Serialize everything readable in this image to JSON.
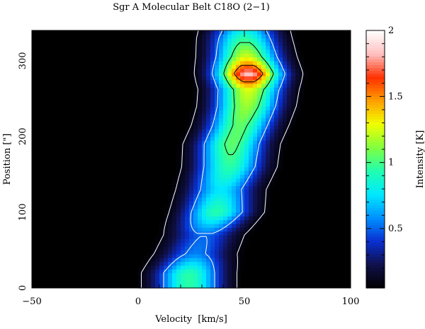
{
  "chart_data": {
    "type": "heatmap",
    "title": "Sgr A Molecular Belt C18O (2−1)",
    "xlabel": "Velocity  [km/s]",
    "ylabel": "Position [\"]",
    "xlim": [
      -50,
      100
    ],
    "ylim": [
      0,
      340
    ],
    "x_ticks": [
      -50,
      0,
      50,
      100
    ],
    "y_ticks": [
      0,
      100,
      200,
      300
    ],
    "colorbar": {
      "label": "Intensity [K]",
      "range": [
        0.05,
        2
      ],
      "ticks": [
        0.5,
        1,
        1.5,
        2
      ],
      "colormap": [
        "#000000",
        "#10104a",
        "#0a2fd0",
        "#0090ff",
        "#00e8ff",
        "#20ffb0",
        "#80ff40",
        "#f0ff00",
        "#ffa000",
        "#ff3000",
        "#ffc0c0",
        "#ffffff"
      ]
    },
    "ridge": [
      {
        "position": 0,
        "velocity": 24,
        "peak": 0.95
      },
      {
        "position": 20,
        "velocity": 24,
        "peak": 0.95
      },
      {
        "position": 45,
        "velocity": 27,
        "peak": 0.55
      },
      {
        "position": 70,
        "velocity": 31,
        "peak": 0.5
      },
      {
        "position": 100,
        "velocity": 37,
        "peak": 0.95
      },
      {
        "position": 130,
        "velocity": 39,
        "peak": 0.75
      },
      {
        "position": 160,
        "velocity": 43,
        "peak": 0.95
      },
      {
        "position": 190,
        "velocity": 44,
        "peak": 1.05
      },
      {
        "position": 215,
        "velocity": 48,
        "peak": 1.05
      },
      {
        "position": 240,
        "velocity": 51,
        "peak": 1.15
      },
      {
        "position": 262,
        "velocity": 52,
        "peak": 1.25
      },
      {
        "position": 283,
        "velocity": 52,
        "peak": 1.85
      },
      {
        "position": 305,
        "velocity": 51,
        "peak": 1.25
      },
      {
        "position": 330,
        "velocity": 50,
        "peak": 0.95
      },
      {
        "position": 340,
        "velocity": 50,
        "peak": 0.8
      }
    ],
    "contour_levels": [
      0.1,
      0.5,
      1.0,
      1.5
    ],
    "contour_colors": [
      "#ffffff",
      "#ffffff",
      "#000000",
      "#000000"
    ]
  }
}
